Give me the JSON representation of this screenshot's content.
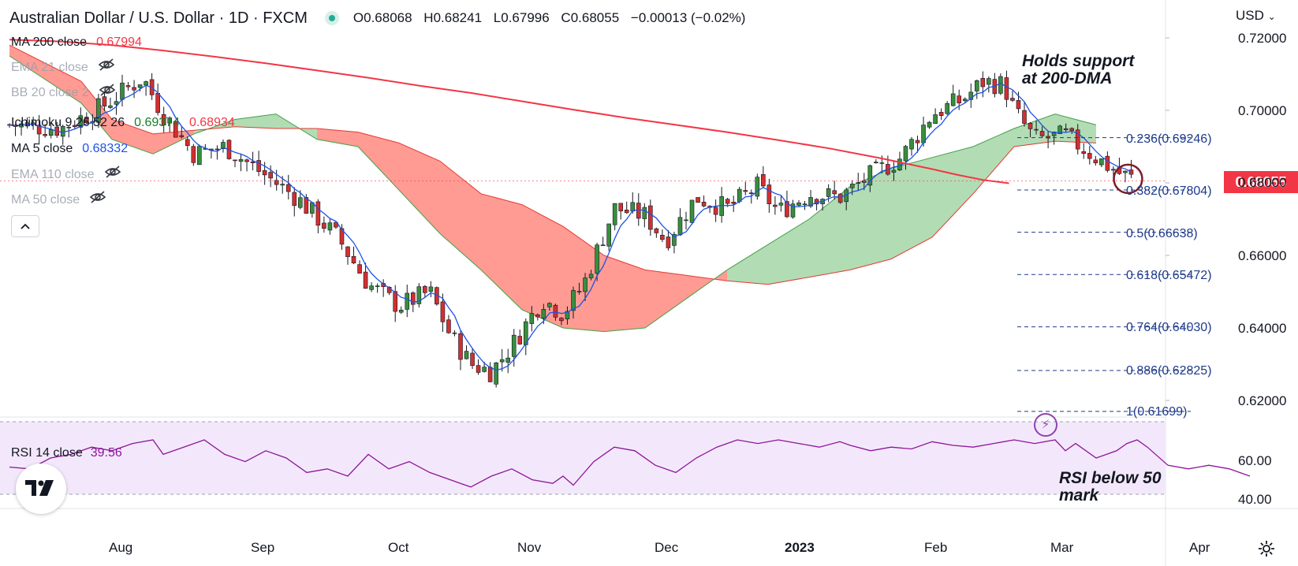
{
  "header": {
    "title": "Australian Dollar / U.S. Dollar · 1D · FXCM",
    "open_label": "O",
    "open": "0.68068",
    "high_label": "H",
    "high": "0.68241",
    "low_label": "L",
    "low": "0.67996",
    "close_label": "C",
    "close": "0.68055",
    "change": "−0.00013 (−0.02%)"
  },
  "legend": {
    "ma200": {
      "label": "MA 200 close",
      "value": "0.67994"
    },
    "ema21": {
      "label": "EMA 21 close"
    },
    "bb20": {
      "label": "BB 20 close 2"
    },
    "ichimoku": {
      "label": "Ichimoku 9 26 52 26",
      "value1": "0.69374",
      "value2": "0.68934"
    },
    "ma5": {
      "label": "MA 5 close",
      "value": "0.68332"
    },
    "ema110": {
      "label": "EMA 110 close"
    },
    "ma50": {
      "label": "MA 50 close"
    }
  },
  "rsi_legend": {
    "label": "RSI 14 close",
    "value": "39.56"
  },
  "annotations": {
    "support_line1": "Holds support",
    "support_line2": "at 200-DMA",
    "rsi_line1": "RSI below 50",
    "rsi_line2": "mark"
  },
  "price_scale": {
    "currency": "USD",
    "current_price": "0.68055",
    "labels": [
      "0.72000",
      "0.70000",
      "0.68000",
      "0.66000",
      "0.64000",
      "0.62000"
    ],
    "rsi_labels": [
      "60.00",
      "40.00"
    ]
  },
  "time_axis": [
    "Aug",
    "Sep",
    "Oct",
    "Nov",
    "Dec",
    "2023",
    "Feb",
    "Mar",
    "Apr"
  ],
  "fibonacci": [
    {
      "label": "0.236(0.69246)"
    },
    {
      "label": "0.382(0.67804)"
    },
    {
      "label": "0.5(0.66638)"
    },
    {
      "label": "0.618(0.65472)"
    },
    {
      "label": "0.764(0.64030)"
    },
    {
      "label": "0.886(0.62825)"
    },
    {
      "label": "1(0.61699)"
    }
  ],
  "colors": {
    "up": "#388e3c",
    "down": "#d32f2f",
    "ma200": "#f23645",
    "ma5": "#1e53e5",
    "rsi": "#8e1599",
    "cloud_bull": "#a5d6a7",
    "cloud_bear": "#ff8a80",
    "fib": "#1e3a8a"
  },
  "chart_data": {
    "type": "candlestick",
    "symbol": "AUDUSD",
    "timeframe": "1D",
    "ylim": [
      0.6125,
      0.725
    ],
    "rsi_ylim": [
      30,
      70
    ],
    "rsi_band": [
      30,
      70
    ],
    "ma200": [
      [
        0,
        0.7195
      ],
      [
        10,
        0.719
      ],
      [
        20,
        0.718
      ],
      [
        30,
        0.7165
      ],
      [
        40,
        0.7148
      ],
      [
        50,
        0.713
      ],
      [
        60,
        0.711
      ],
      [
        70,
        0.709
      ],
      [
        80,
        0.7068
      ],
      [
        90,
        0.7048
      ],
      [
        100,
        0.7025
      ],
      [
        110,
        0.7002
      ],
      [
        120,
        0.698
      ],
      [
        130,
        0.696
      ],
      [
        140,
        0.694
      ],
      [
        150,
        0.6918
      ],
      [
        160,
        0.6895
      ],
      [
        170,
        0.6868
      ],
      [
        180,
        0.6838
      ],
      [
        185,
        0.6822
      ],
      [
        190,
        0.6808
      ],
      [
        195,
        0.6799
      ]
    ],
    "ichimoku_cloud": [
      [
        0,
        0.718,
        0.715
      ],
      [
        14,
        0.708,
        0.702
      ],
      [
        20,
        0.6975,
        0.692
      ],
      [
        28,
        0.6935,
        0.688
      ],
      [
        36,
        0.6945,
        0.6935
      ],
      [
        44,
        0.6955,
        0.6975
      ],
      [
        52,
        0.695,
        0.699
      ],
      [
        60,
        0.695,
        0.692
      ],
      [
        68,
        0.694,
        0.69
      ],
      [
        76,
        0.691,
        0.678
      ],
      [
        84,
        0.686,
        0.666
      ],
      [
        92,
        0.677,
        0.656
      ],
      [
        100,
        0.674,
        0.645
      ],
      [
        108,
        0.668,
        0.64
      ],
      [
        116,
        0.66,
        0.639
      ],
      [
        124,
        0.656,
        0.64
      ],
      [
        132,
        0.6545,
        0.648
      ],
      [
        140,
        0.653,
        0.656
      ],
      [
        148,
        0.652,
        0.663
      ],
      [
        156,
        0.654,
        0.67
      ],
      [
        164,
        0.656,
        0.679
      ],
      [
        172,
        0.659,
        0.684
      ],
      [
        180,
        0.665,
        0.687
      ],
      [
        188,
        0.677,
        0.69
      ],
      [
        196,
        0.69,
        0.695
      ],
      [
        204,
        0.6915,
        0.699
      ],
      [
        212,
        0.691,
        0.696
      ]
    ],
    "bar_count": 196,
    "rsi": [
      [
        0,
        45
      ],
      [
        4,
        44
      ],
      [
        8,
        50
      ],
      [
        12,
        52
      ],
      [
        16,
        56
      ],
      [
        20,
        54
      ],
      [
        24,
        58
      ],
      [
        28,
        60
      ],
      [
        30,
        52
      ],
      [
        34,
        56
      ],
      [
        38,
        60
      ],
      [
        42,
        52
      ],
      [
        46,
        48
      ],
      [
        50,
        54
      ],
      [
        54,
        50
      ],
      [
        58,
        42
      ],
      [
        62,
        44
      ],
      [
        66,
        40
      ],
      [
        70,
        52
      ],
      [
        74,
        44
      ],
      [
        78,
        48
      ],
      [
        82,
        42
      ],
      [
        86,
        38
      ],
      [
        88,
        36
      ],
      [
        90,
        34
      ],
      [
        94,
        40
      ],
      [
        98,
        44
      ],
      [
        102,
        38
      ],
      [
        106,
        36
      ],
      [
        108,
        40
      ],
      [
        110,
        35
      ],
      [
        114,
        48
      ],
      [
        118,
        56
      ],
      [
        122,
        54
      ],
      [
        126,
        46
      ],
      [
        130,
        42
      ],
      [
        134,
        50
      ],
      [
        138,
        56
      ],
      [
        142,
        60
      ],
      [
        146,
        58
      ],
      [
        150,
        60
      ],
      [
        154,
        58
      ],
      [
        158,
        56
      ],
      [
        162,
        59
      ],
      [
        164,
        57
      ],
      [
        168,
        54
      ],
      [
        172,
        56
      ],
      [
        176,
        55
      ],
      [
        180,
        59
      ],
      [
        184,
        57
      ],
      [
        188,
        56
      ],
      [
        192,
        58
      ],
      [
        196,
        60
      ],
      [
        200,
        58
      ],
      [
        204,
        60
      ],
      [
        206,
        54
      ],
      [
        208,
        58
      ],
      [
        212,
        50
      ],
      [
        216,
        54
      ],
      [
        218,
        58
      ],
      [
        220,
        60
      ],
      [
        222,
        56
      ],
      [
        226,
        46
      ],
      [
        230,
        44
      ],
      [
        234,
        46
      ],
      [
        238,
        44
      ],
      [
        242,
        40
      ]
    ],
    "fib_levels": [
      {
        "ratio": 0.236,
        "price": 0.69246
      },
      {
        "ratio": 0.382,
        "price": 0.67804
      },
      {
        "ratio": 0.5,
        "price": 0.66638
      },
      {
        "ratio": 0.618,
        "price": 0.65472
      },
      {
        "ratio": 0.764,
        "price": 0.6403
      },
      {
        "ratio": 0.886,
        "price": 0.62825
      },
      {
        "ratio": 1,
        "price": 0.61699
      }
    ]
  }
}
